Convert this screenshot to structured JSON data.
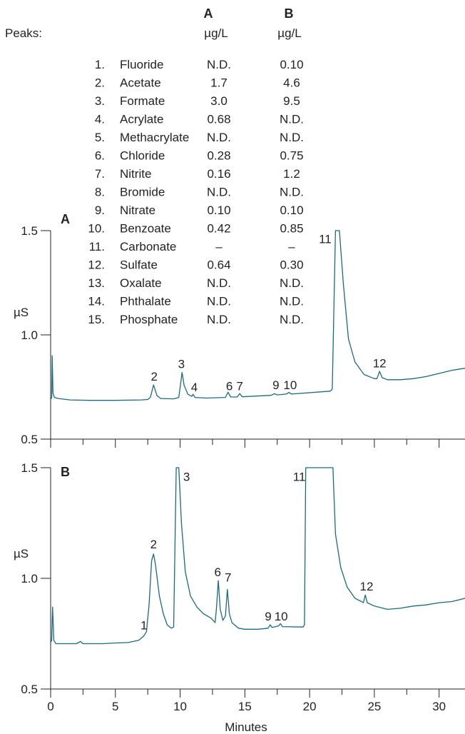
{
  "colors": {
    "trace": "#1b6a80",
    "axis": "#222222"
  },
  "table": {
    "peaks_label": "Peaks:",
    "col_a_header": "A",
    "col_b_header": "B",
    "unit_a": "µg/L",
    "unit_b": "µg/L",
    "rows": [
      {
        "num": "1.",
        "name": "Fluoride",
        "a": "N.D.",
        "b": "0.10"
      },
      {
        "num": "2.",
        "name": "Acetate",
        "a": "1.7",
        "b": "4.6"
      },
      {
        "num": "3.",
        "name": "Formate",
        "a": "3.0",
        "b": "9.5"
      },
      {
        "num": "4.",
        "name": "Acrylate",
        "a": "0.68",
        "b": "N.D."
      },
      {
        "num": "5.",
        "name": "Methacrylate",
        "a": "N.D.",
        "b": "N.D."
      },
      {
        "num": "6.",
        "name": "Chloride",
        "a": "0.28",
        "b": "0.75"
      },
      {
        "num": "7.",
        "name": "Nitrite",
        "a": "0.16",
        "b": "1.2"
      },
      {
        "num": "8.",
        "name": "Bromide",
        "a": "N.D.",
        "b": "N.D."
      },
      {
        "num": "9.",
        "name": "Nitrate",
        "a": "0.10",
        "b": "0.10"
      },
      {
        "num": "10.",
        "name": "Benzoate",
        "a": "0.42",
        "b": "0.85"
      },
      {
        "num": "11.",
        "name": "Carbonate",
        "a": "–",
        "b": "–"
      },
      {
        "num": "12.",
        "name": "Sulfate",
        "a": "0.64",
        "b": "0.30"
      },
      {
        "num": "13.",
        "name": "Oxalate",
        "a": "N.D.",
        "b": "N.D."
      },
      {
        "num": "14.",
        "name": "Phthalate",
        "a": "N.D.",
        "b": "N.D."
      },
      {
        "num": "15.",
        "name": "Phosphate",
        "a": "N.D.",
        "b": "N.D."
      }
    ]
  },
  "chart_data": {
    "type": "line",
    "xlabel": "Minutes",
    "xlim": [
      0,
      32
    ],
    "xticks": [
      0,
      5,
      10,
      15,
      20,
      25,
      30
    ],
    "x_tick_labels": [
      "0",
      "5",
      "10",
      "15",
      "20",
      "25",
      "30"
    ],
    "panels": [
      {
        "label": "A",
        "ylabel": "µS",
        "ylim": [
          0.5,
          1.5
        ],
        "yticks": [
          0.5,
          1.0,
          1.5
        ],
        "y_tick_labels": [
          "0.5",
          "1.0",
          "1.5"
        ],
        "trace": [
          [
            0,
            0.69
          ],
          [
            0.08,
            0.7
          ],
          [
            0.12,
            0.9
          ],
          [
            0.18,
            0.72
          ],
          [
            0.3,
            0.7
          ],
          [
            0.6,
            0.695
          ],
          [
            1.5,
            0.688
          ],
          [
            3,
            0.686
          ],
          [
            5,
            0.686
          ],
          [
            7.0,
            0.688
          ],
          [
            7.5,
            0.69
          ],
          [
            7.7,
            0.7
          ],
          [
            7.95,
            0.76
          ],
          [
            8.2,
            0.71
          ],
          [
            8.5,
            0.695
          ],
          [
            9.5,
            0.693
          ],
          [
            9.9,
            0.7
          ],
          [
            10.15,
            0.82
          ],
          [
            10.3,
            0.76
          ],
          [
            10.6,
            0.715
          ],
          [
            10.9,
            0.705
          ],
          [
            11.0,
            0.715
          ],
          [
            11.15,
            0.7
          ],
          [
            12,
            0.697
          ],
          [
            13.5,
            0.7
          ],
          [
            13.7,
            0.725
          ],
          [
            13.9,
            0.702
          ],
          [
            14.4,
            0.702
          ],
          [
            14.6,
            0.718
          ],
          [
            14.8,
            0.703
          ],
          [
            17,
            0.71
          ],
          [
            17.3,
            0.718
          ],
          [
            17.5,
            0.712
          ],
          [
            18.2,
            0.716
          ],
          [
            18.4,
            0.724
          ],
          [
            18.6,
            0.716
          ],
          [
            21.6,
            0.73
          ],
          [
            21.75,
            0.74
          ],
          [
            21.9,
            1.2
          ],
          [
            22.0,
            1.5
          ],
          [
            22.3,
            1.5
          ],
          [
            22.6,
            1.25
          ],
          [
            23.0,
            0.98
          ],
          [
            23.5,
            0.87
          ],
          [
            24.2,
            0.81
          ],
          [
            25.0,
            0.79
          ],
          [
            25.2,
            0.79
          ],
          [
            25.4,
            0.825
          ],
          [
            25.6,
            0.795
          ],
          [
            26.0,
            0.785
          ],
          [
            27,
            0.785
          ],
          [
            28,
            0.79
          ],
          [
            29,
            0.8
          ],
          [
            30,
            0.815
          ],
          [
            31,
            0.83
          ],
          [
            32,
            0.84
          ]
        ],
        "peak_labels": [
          {
            "text": "2",
            "x": 8.0,
            "y": 0.78
          },
          {
            "text": "3",
            "x": 10.1,
            "y": 0.84
          },
          {
            "text": "4",
            "x": 11.1,
            "y": 0.73
          },
          {
            "text": "6",
            "x": 13.8,
            "y": 0.735
          },
          {
            "text": "7",
            "x": 14.6,
            "y": 0.735
          },
          {
            "text": "9",
            "x": 17.4,
            "y": 0.74
          },
          {
            "text": "10",
            "x": 18.5,
            "y": 0.74
          },
          {
            "text": "11",
            "x": 21.2,
            "y": 1.44
          },
          {
            "text": "12",
            "x": 25.4,
            "y": 0.845
          }
        ]
      },
      {
        "label": "B",
        "ylabel": "µS",
        "ylim": [
          0.5,
          1.5
        ],
        "yticks": [
          0.5,
          1.0,
          1.5
        ],
        "y_tick_labels": [
          "0.5",
          "1.0",
          "1.5"
        ],
        "trace": [
          [
            0,
            0.71
          ],
          [
            0.08,
            0.72
          ],
          [
            0.15,
            0.87
          ],
          [
            0.25,
            0.72
          ],
          [
            0.4,
            0.705
          ],
          [
            1,
            0.705
          ],
          [
            2.0,
            0.705
          ],
          [
            2.3,
            0.715
          ],
          [
            2.5,
            0.705
          ],
          [
            4,
            0.705
          ],
          [
            5,
            0.708
          ],
          [
            6,
            0.71
          ],
          [
            6.8,
            0.72
          ],
          [
            7.2,
            0.74
          ],
          [
            7.4,
            0.76
          ],
          [
            7.6,
            0.88
          ],
          [
            7.8,
            1.08
          ],
          [
            7.95,
            1.11
          ],
          [
            8.1,
            1.06
          ],
          [
            8.4,
            0.92
          ],
          [
            8.7,
            0.84
          ],
          [
            9.0,
            0.79
          ],
          [
            9.3,
            0.775
          ],
          [
            9.5,
            0.78
          ],
          [
            9.7,
            1.5
          ],
          [
            9.9,
            1.5
          ],
          [
            10.1,
            1.25
          ],
          [
            10.4,
            1.03
          ],
          [
            10.8,
            0.92
          ],
          [
            11.3,
            0.87
          ],
          [
            11.8,
            0.84
          ],
          [
            12.4,
            0.82
          ],
          [
            12.7,
            0.8
          ],
          [
            12.8,
            0.86
          ],
          [
            12.95,
            0.99
          ],
          [
            13.1,
            0.86
          ],
          [
            13.3,
            0.81
          ],
          [
            13.5,
            0.83
          ],
          [
            13.65,
            0.95
          ],
          [
            13.8,
            0.84
          ],
          [
            14.0,
            0.8
          ],
          [
            14.5,
            0.775
          ],
          [
            15,
            0.77
          ],
          [
            16,
            0.77
          ],
          [
            16.8,
            0.775
          ],
          [
            16.95,
            0.79
          ],
          [
            17.1,
            0.778
          ],
          [
            17.6,
            0.785
          ],
          [
            17.75,
            0.795
          ],
          [
            17.9,
            0.782
          ],
          [
            19.5,
            0.78
          ],
          [
            19.6,
            0.79
          ],
          [
            19.7,
            1.5
          ],
          [
            21.8,
            1.5
          ],
          [
            22.0,
            1.2
          ],
          [
            22.4,
            1.05
          ],
          [
            22.9,
            0.96
          ],
          [
            23.5,
            0.91
          ],
          [
            24.0,
            0.895
          ],
          [
            24.15,
            0.89
          ],
          [
            24.3,
            0.925
          ],
          [
            24.45,
            0.89
          ],
          [
            25.0,
            0.875
          ],
          [
            26,
            0.86
          ],
          [
            27,
            0.865
          ],
          [
            28,
            0.875
          ],
          [
            29,
            0.88
          ],
          [
            30,
            0.89
          ],
          [
            31,
            0.895
          ],
          [
            32,
            0.91
          ]
        ],
        "peak_labels": [
          {
            "text": "1",
            "x": 7.2,
            "y": 0.77
          },
          {
            "text": "2",
            "x": 7.95,
            "y": 1.135
          },
          {
            "text": "3",
            "x": 10.5,
            "y": 1.44
          },
          {
            "text": "6",
            "x": 12.9,
            "y": 1.01
          },
          {
            "text": "7",
            "x": 13.7,
            "y": 0.985
          },
          {
            "text": "9",
            "x": 16.8,
            "y": 0.81
          },
          {
            "text": "10",
            "x": 17.8,
            "y": 0.81
          },
          {
            "text": "11",
            "x": 19.2,
            "y": 1.44
          },
          {
            "text": "12",
            "x": 24.4,
            "y": 0.945
          }
        ]
      }
    ]
  }
}
